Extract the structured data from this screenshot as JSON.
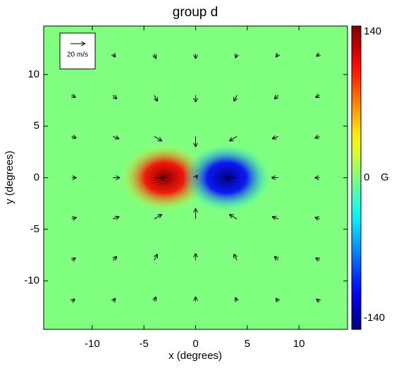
{
  "chart_data": {
    "type": "vector-heatmap",
    "title": "group d",
    "x_label": "x (degrees)",
    "y_label": "y (degrees)",
    "xlim": [
      -14.7,
      14.7
    ],
    "ylim": [
      -14.7,
      14.7
    ],
    "xticks": [
      -10,
      -5,
      0,
      5,
      10
    ],
    "yticks": [
      -10,
      -5,
      0,
      5,
      10
    ],
    "colorbar": {
      "lim": [
        -140,
        140
      ],
      "ticks": [
        -140,
        0,
        140
      ],
      "label": "G"
    },
    "field": {
      "x": [
        -3,
        3
      ],
      "y": [
        0,
        0
      ],
      "values": [
        140,
        -140
      ]
    },
    "reference": {
      "value": 20,
      "label": "20 m/s"
    },
    "vectors": {
      "x": [
        -12,
        -8,
        -4,
        0,
        4,
        8,
        12,
        -12,
        -8,
        -4,
        0,
        4,
        8,
        12,
        -12,
        -8,
        -4,
        0,
        4,
        8,
        12,
        -12,
        -8,
        -4,
        0,
        4,
        8,
        12,
        -12,
        -8,
        -4,
        0,
        4,
        8,
        12,
        -12,
        -8,
        -4,
        0,
        4,
        8,
        12,
        -12,
        -8,
        -4,
        0,
        4,
        8,
        12
      ],
      "y": [
        12,
        12,
        12,
        12,
        12,
        12,
        12,
        8,
        8,
        8,
        8,
        8,
        8,
        8,
        4,
        4,
        4,
        4,
        4,
        4,
        4,
        0,
        0,
        0,
        0,
        0,
        0,
        0,
        -4,
        -4,
        -4,
        -4,
        -4,
        -4,
        -4,
        -8,
        -8,
        -8,
        -8,
        -8,
        -8,
        -8,
        -12,
        -12,
        -12,
        -12,
        -12,
        -12,
        -12
      ],
      "u": [
        4,
        3,
        2,
        0,
        -2,
        -3,
        -4,
        5,
        5,
        4,
        0,
        -4,
        -5,
        -5,
        6,
        8,
        10,
        0,
        -10,
        -8,
        -6,
        6,
        9,
        14,
        2,
        -14,
        -9,
        -6,
        6,
        8,
        10,
        0,
        -10,
        -8,
        -6,
        5,
        5,
        4,
        0,
        -4,
        -5,
        -5,
        4,
        3,
        2,
        0,
        -2,
        -3,
        -4
      ],
      "v": [
        -3,
        -4,
        -6,
        -6,
        -5,
        -4,
        -3,
        -3,
        -5,
        -8,
        -9,
        -8,
        -5,
        -3,
        -2,
        -3,
        -6,
        -14,
        -6,
        -3,
        -2,
        0,
        0,
        0,
        3,
        0,
        0,
        0,
        2,
        3,
        6,
        14,
        6,
        3,
        2,
        3,
        5,
        8,
        9,
        8,
        5,
        3,
        3,
        4,
        6,
        6,
        5,
        4,
        3
      ]
    }
  }
}
